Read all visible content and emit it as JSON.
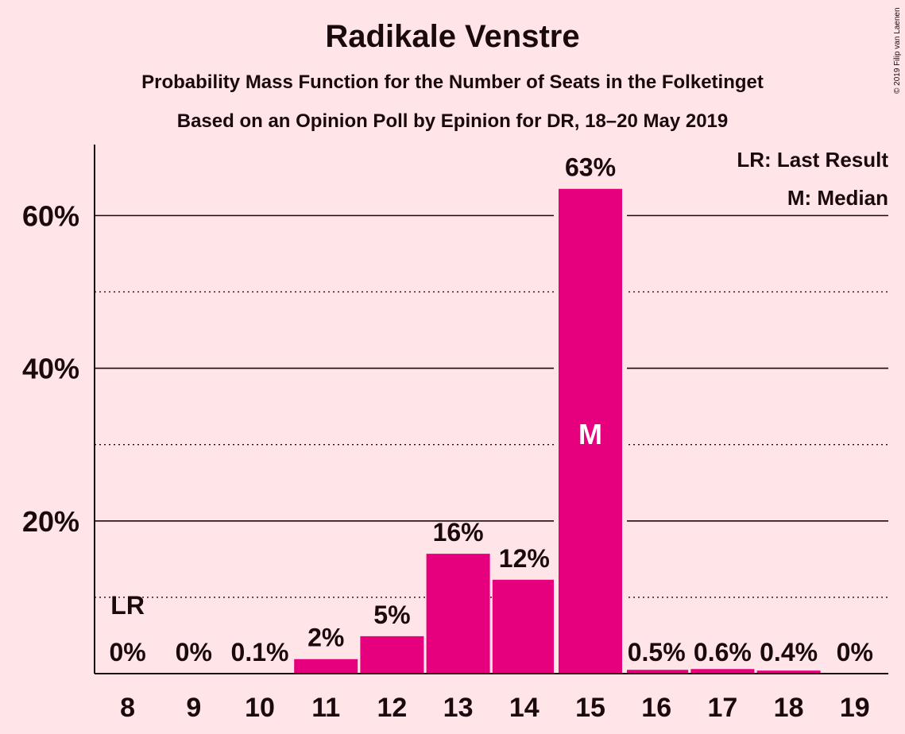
{
  "chart_data": {
    "type": "bar",
    "title": "Radikale Venstre",
    "subtitle": "Probability Mass Function for the Number of Seats in the Folketinget",
    "subtitle2": "Based on an Opinion Poll by Epinion for DR, 18–20 May 2019",
    "copyright": "© 2019 Filip van Laenen",
    "categories": [
      "8",
      "9",
      "10",
      "11",
      "12",
      "13",
      "14",
      "15",
      "16",
      "17",
      "18",
      "19"
    ],
    "values": [
      0,
      0,
      0.1,
      2,
      5,
      16,
      12,
      63,
      0.5,
      0.6,
      0.4,
      0
    ],
    "bar_heights_pct": [
      0,
      0,
      0.1,
      1.9,
      4.9,
      15.7,
      12.3,
      63.5,
      0.5,
      0.6,
      0.4,
      0
    ],
    "value_labels": [
      "0%",
      "0%",
      "0.1%",
      "2%",
      "5%",
      "16%",
      "12%",
      "63%",
      "0.5%",
      "0.6%",
      "0.4%",
      "0%"
    ],
    "ylim": [
      0,
      69
    ],
    "yticks": [
      20,
      40,
      60
    ],
    "ytick_labels": [
      "20%",
      "40%",
      "60%"
    ],
    "minor_gridlines": [
      10,
      30,
      50
    ],
    "last_result_seat": "8",
    "last_result_label": "LR",
    "median_seat": "15",
    "median_label": "M",
    "legend": [
      "LR: Last Result",
      "M: Median"
    ],
    "legend_placement": "top-right",
    "bar_color": "#E6007E",
    "background_color": "#FFE4E8"
  }
}
